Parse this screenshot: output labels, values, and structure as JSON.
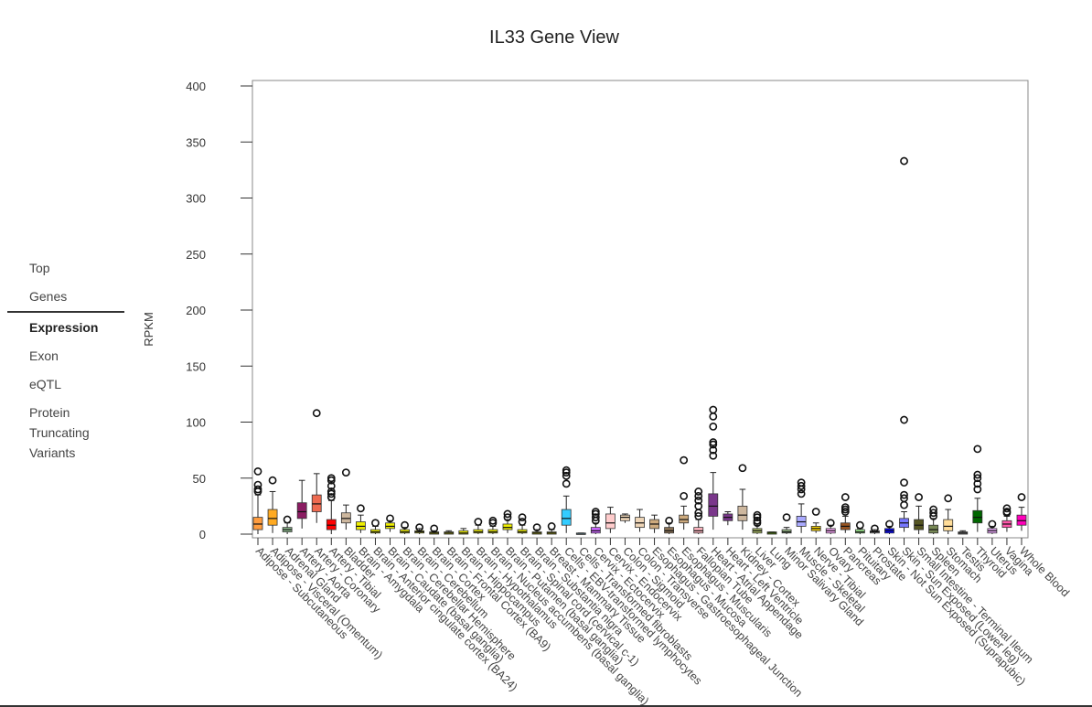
{
  "page": {
    "title": "IL33 Gene View"
  },
  "nav": {
    "items": [
      {
        "label": "Top"
      },
      {
        "label": "Genes"
      },
      {
        "label": "Expression"
      },
      {
        "label": "Exon"
      },
      {
        "label": "eQTL"
      },
      {
        "label": "Protein Truncating Variants",
        "lines": [
          "Protein",
          "Truncating",
          "Variants"
        ]
      }
    ],
    "active_index": 2
  },
  "chart_data": {
    "type": "boxplot",
    "title": "IL33 Gene View",
    "ylabel": "RPKM",
    "xlabel": "",
    "ylim": [
      0,
      400
    ],
    "yticks": [
      0,
      50,
      100,
      150,
      200,
      250,
      300,
      350,
      400
    ],
    "grid": false,
    "legend": "none",
    "series": [
      {
        "name": "Adipose - Subcutaneous",
        "color": "#ff9c3e",
        "q1": 4,
        "median": 9,
        "q3": 15,
        "low": 0,
        "high": 35,
        "outliers": [
          38,
          40,
          44,
          56
        ]
      },
      {
        "name": "Adipose - Visceral (Omentum)",
        "color": "#ffaa22",
        "q1": 8,
        "median": 14,
        "q3": 22,
        "low": 1,
        "high": 38,
        "outliers": [
          48
        ]
      },
      {
        "name": "Adrenal Gland",
        "color": "#8fbc8f",
        "q1": 2,
        "median": 4,
        "q3": 6,
        "low": 0,
        "high": 10,
        "outliers": [
          13
        ]
      },
      {
        "name": "Artery - Aorta",
        "color": "#8b1c62",
        "q1": 14,
        "median": 20,
        "q3": 28,
        "low": 5,
        "high": 48,
        "outliers": []
      },
      {
        "name": "Artery - Coronary",
        "color": "#ee6a50",
        "q1": 20,
        "median": 27,
        "q3": 35,
        "low": 10,
        "high": 54,
        "outliers": [
          108
        ]
      },
      {
        "name": "Artery - Tibial",
        "color": "#ff0000",
        "q1": 4,
        "median": 8,
        "q3": 13,
        "low": 0,
        "high": 30,
        "outliers": [
          33,
          36,
          38,
          43,
          48,
          50
        ]
      },
      {
        "name": "Bladder",
        "color": "#cdb79e",
        "q1": 10,
        "median": 14,
        "q3": 19,
        "low": 4,
        "high": 26,
        "outliers": [
          55
        ]
      },
      {
        "name": "Brain - Amygdala",
        "color": "#eeee00",
        "q1": 4,
        "median": 7,
        "q3": 11,
        "low": 1,
        "high": 17,
        "outliers": [
          23
        ]
      },
      {
        "name": "Brain - Anterior cingulate cortex (BA24)",
        "color": "#eeee00",
        "q1": 1,
        "median": 2,
        "q3": 4,
        "low": 0,
        "high": 7,
        "outliers": [
          10
        ]
      },
      {
        "name": "Brain - Caudate (basal ganglia)",
        "color": "#eeee00",
        "q1": 5,
        "median": 7,
        "q3": 10,
        "low": 2,
        "high": 12,
        "outliers": [
          14
        ]
      },
      {
        "name": "Brain - Cerebellar Hemisphere",
        "color": "#eeee00",
        "q1": 1,
        "median": 2,
        "q3": 4,
        "low": 0,
        "high": 6,
        "outliers": [
          8
        ]
      },
      {
        "name": "Brain - Cerebellum",
        "color": "#eeee00",
        "q1": 1,
        "median": 2,
        "q3": 3,
        "low": 0,
        "high": 5,
        "outliers": [
          6
        ]
      },
      {
        "name": "Brain - Cortex",
        "color": "#eeee00",
        "q1": 0,
        "median": 1,
        "q3": 2,
        "low": 0,
        "high": 3,
        "outliers": [
          5
        ]
      },
      {
        "name": "Brain - Frontal Cortex (BA9)",
        "color": "#eeee00",
        "q1": 0,
        "median": 1,
        "q3": 2,
        "low": 0,
        "high": 3,
        "outliers": []
      },
      {
        "name": "Brain - Hippocampus",
        "color": "#eeee00",
        "q1": 0,
        "median": 1,
        "q3": 3,
        "low": 0,
        "high": 5,
        "outliers": []
      },
      {
        "name": "Brain - Hypothalamus",
        "color": "#eeee00",
        "q1": 1,
        "median": 2,
        "q3": 4,
        "low": 0,
        "high": 8,
        "outliers": [
          11
        ]
      },
      {
        "name": "Brain - Nucleus accumbens (basal ganglia)",
        "color": "#eeee00",
        "q1": 1,
        "median": 2,
        "q3": 4,
        "low": 0,
        "high": 7,
        "outliers": [
          10,
          12
        ]
      },
      {
        "name": "Brain - Putamen (basal ganglia)",
        "color": "#eeee00",
        "q1": 4,
        "median": 6,
        "q3": 9,
        "low": 1,
        "high": 13,
        "outliers": [
          15,
          18
        ]
      },
      {
        "name": "Brain - Spinal cord (cervical c-1)",
        "color": "#eeee00",
        "q1": 1,
        "median": 2,
        "q3": 4,
        "low": 0,
        "high": 8,
        "outliers": [
          11,
          15
        ]
      },
      {
        "name": "Brain - Substantia nigra",
        "color": "#eeee00",
        "q1": 0,
        "median": 1,
        "q3": 2,
        "low": 0,
        "high": 4,
        "outliers": [
          6
        ]
      },
      {
        "name": "Breast - Mammary Tissue",
        "color": "#eeee00",
        "q1": 0,
        "median": 1,
        "q3": 2,
        "low": 0,
        "high": 4,
        "outliers": [
          7
        ]
      },
      {
        "name": "Cells - EBV-transformed lymphocytes",
        "color": "#33ccff",
        "q1": 8,
        "median": 14,
        "q3": 22,
        "low": 1,
        "high": 34,
        "outliers": [
          45,
          52,
          55,
          57
        ]
      },
      {
        "name": "Cells - Transformed fibroblasts",
        "color": "#aaeeff",
        "q1": 0,
        "median": 0,
        "q3": 1,
        "low": 0,
        "high": 1,
        "outliers": []
      },
      {
        "name": "Cervix - Ectocervix",
        "color": "#cc66ff",
        "q1": 1,
        "median": 3,
        "q3": 6,
        "low": 0,
        "high": 10,
        "outliers": [
          12,
          15,
          18,
          20
        ]
      },
      {
        "name": "Cervix - Endocervix",
        "color": "#ffcccc",
        "q1": 5,
        "median": 10,
        "q3": 18,
        "low": 1,
        "high": 24,
        "outliers": []
      },
      {
        "name": "Colon - Sigmoid",
        "color": "#eed5b7",
        "q1": 12,
        "median": 15,
        "q3": 17,
        "low": 10,
        "high": 18,
        "outliers": []
      },
      {
        "name": "Colon - Transverse",
        "color": "#eed5b7",
        "q1": 6,
        "median": 10,
        "q3": 15,
        "low": 2,
        "high": 22,
        "outliers": []
      },
      {
        "name": "Esophagus - Gastroesophageal Junction",
        "color": "#cdaa7d",
        "q1": 5,
        "median": 9,
        "q3": 13,
        "low": 1,
        "high": 17,
        "outliers": []
      },
      {
        "name": "Esophagus - Mucosa",
        "color": "#8b7355",
        "q1": 1,
        "median": 3,
        "q3": 6,
        "low": 0,
        "high": 10,
        "outliers": [
          12
        ]
      },
      {
        "name": "Esophagus - Muscularis",
        "color": "#cdaa7d",
        "q1": 10,
        "median": 13,
        "q3": 17,
        "low": 4,
        "high": 25,
        "outliers": [
          34,
          66
        ]
      },
      {
        "name": "Fallopian Tube",
        "color": "#ffb6c1",
        "q1": 1,
        "median": 3,
        "q3": 6,
        "low": 0,
        "high": 13,
        "outliers": [
          16,
          19,
          25,
          30,
          34,
          38
        ]
      },
      {
        "name": "Heart - Atrial Appendage",
        "color": "#7a378b",
        "q1": 16,
        "median": 25,
        "q3": 36,
        "low": 4,
        "high": 55,
        "outliers": [
          70,
          75,
          80,
          82,
          96,
          105,
          111
        ]
      },
      {
        "name": "Heart - Left Ventricle",
        "color": "#7a378b",
        "q1": 12,
        "median": 15,
        "q3": 18,
        "low": 8,
        "high": 20,
        "outliers": []
      },
      {
        "name": "Kidney - Cortex",
        "color": "#cdb79e",
        "q1": 12,
        "median": 17,
        "q3": 25,
        "low": 4,
        "high": 40,
        "outliers": [
          59
        ]
      },
      {
        "name": "Liver",
        "color": "#aabb66",
        "q1": 1,
        "median": 3,
        "q3": 5,
        "low": 0,
        "high": 8,
        "outliers": [
          10,
          12,
          15,
          17
        ]
      },
      {
        "name": "Lung",
        "color": "#99ff00",
        "q1": 0,
        "median": 1,
        "q3": 2,
        "low": 0,
        "high": 2,
        "outliers": []
      },
      {
        "name": "Minor Salivary Gland",
        "color": "#99bb88",
        "q1": 1,
        "median": 2,
        "q3": 4,
        "low": 0,
        "high": 6,
        "outliers": [
          15
        ]
      },
      {
        "name": "Muscle - Skeletal",
        "color": "#aaaaff",
        "q1": 7,
        "median": 11,
        "q3": 16,
        "low": 1,
        "high": 27,
        "outliers": [
          36,
          40,
          43,
          46
        ]
      },
      {
        "name": "Nerve - Tibial",
        "color": "#ffd700",
        "q1": 3,
        "median": 5,
        "q3": 7,
        "low": 1,
        "high": 10,
        "outliers": [
          20
        ]
      },
      {
        "name": "Ovary",
        "color": "#ffaaff",
        "q1": 1,
        "median": 3,
        "q3": 5,
        "low": 0,
        "high": 8,
        "outliers": [
          10
        ]
      },
      {
        "name": "Pancreas",
        "color": "#995522",
        "q1": 4,
        "median": 7,
        "q3": 10,
        "low": 1,
        "high": 16,
        "outliers": [
          20,
          22,
          24,
          33
        ]
      },
      {
        "name": "Pituitary",
        "color": "#aaff99",
        "q1": 1,
        "median": 2,
        "q3": 4,
        "low": 0,
        "high": 5,
        "outliers": [
          8
        ]
      },
      {
        "name": "Prostate",
        "color": "#dddddd",
        "q1": 1,
        "median": 2,
        "q3": 3,
        "low": 0,
        "high": 4,
        "outliers": [
          5
        ]
      },
      {
        "name": "Skin - Not Sun Exposed (Suprapubic)",
        "color": "#0000ff",
        "q1": 1,
        "median": 3,
        "q3": 5,
        "low": 0,
        "high": 7,
        "outliers": [
          9
        ]
      },
      {
        "name": "Skin - Sun Exposed (Lower leg)",
        "color": "#7777ff",
        "q1": 6,
        "median": 10,
        "q3": 14,
        "low": 2,
        "high": 20,
        "outliers": [
          26,
          32,
          35,
          46,
          102,
          333
        ]
      },
      {
        "name": "Small Intestine - Terminal Ileum",
        "color": "#555522",
        "q1": 4,
        "median": 8,
        "q3": 13,
        "low": 0,
        "high": 25,
        "outliers": [
          33
        ]
      },
      {
        "name": "Spleen",
        "color": "#778855",
        "q1": 1,
        "median": 4,
        "q3": 8,
        "low": 0,
        "high": 14,
        "outliers": [
          16,
          19,
          22
        ]
      },
      {
        "name": "Stomach",
        "color": "#ffdd99",
        "q1": 3,
        "median": 7,
        "q3": 13,
        "low": 0,
        "high": 22,
        "outliers": [
          32
        ]
      },
      {
        "name": "Testis",
        "color": "#aaaaaa",
        "q1": 0,
        "median": 1,
        "q3": 2,
        "low": 0,
        "high": 3,
        "outliers": []
      },
      {
        "name": "Thyroid",
        "color": "#006600",
        "q1": 10,
        "median": 15,
        "q3": 21,
        "low": 2,
        "high": 32,
        "outliers": [
          40,
          45,
          50,
          53,
          76
        ]
      },
      {
        "name": "Uterus",
        "color": "#eeaaff",
        "q1": 1,
        "median": 3,
        "q3": 5,
        "low": 0,
        "high": 7,
        "outliers": [
          9
        ]
      },
      {
        "name": "Vagina",
        "color": "#ff55aa",
        "q1": 6,
        "median": 9,
        "q3": 12,
        "low": 2,
        "high": 16,
        "outliers": [
          19,
          20,
          23
        ]
      },
      {
        "name": "Whole Blood",
        "color": "#ff00bb",
        "q1": 8,
        "median": 12,
        "q3": 17,
        "low": 3,
        "high": 24,
        "outliers": [
          33
        ]
      }
    ]
  }
}
